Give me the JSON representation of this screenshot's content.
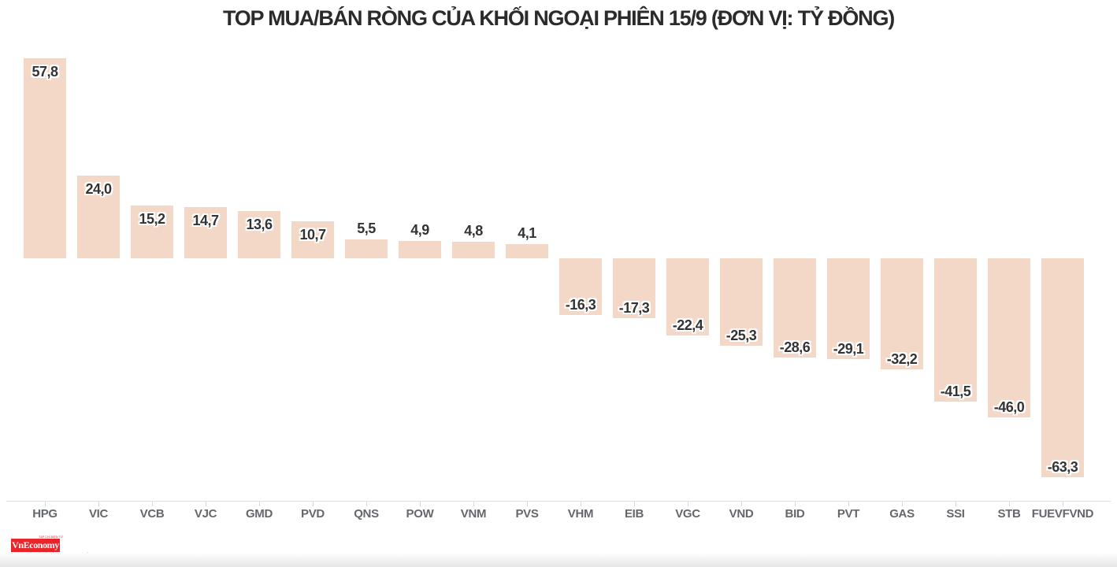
{
  "chart_data": {
    "type": "bar",
    "title": "TOP MUA/BÁN RÒNG CỦA KHỐI NGOẠI PHIÊN 15/9 (ĐƠN VỊ: TỶ ĐỒNG)",
    "categories": [
      "HPG",
      "VIC",
      "VCB",
      "VJC",
      "GMD",
      "PVD",
      "QNS",
      "POW",
      "VNM",
      "PVS",
      "VHM",
      "EIB",
      "VGC",
      "VND",
      "BID",
      "PVT",
      "GAS",
      "SSI",
      "STB",
      "FUEVFVND"
    ],
    "values": [
      57.8,
      24.0,
      15.2,
      14.7,
      13.6,
      10.7,
      5.5,
      4.9,
      4.8,
      4.1,
      -16.3,
      -17.3,
      -22.4,
      -25.3,
      -28.6,
      -29.1,
      -32.2,
      -41.5,
      -46.0,
      -63.3
    ],
    "value_labels": [
      "57,8",
      "24,0",
      "15,2",
      "14,7",
      "13,6",
      "10,7",
      "5,5",
      "4,9",
      "4,8",
      "4,1",
      "-16,3",
      "-17,3",
      "-22,4",
      "-25,3",
      "-28,6",
      "-29,1",
      "-32,2",
      "-41,5",
      "-46,0",
      "-63,3"
    ],
    "xlabel": "",
    "ylabel": "",
    "ylim": [
      -70,
      62
    ],
    "grid": false,
    "legend": false,
    "bar_color": "#f3d8c7",
    "value_label_color": "#333333",
    "category_label_color": "#64676c",
    "axis_color": "#e0e0e0",
    "title_color": "#2b2b2b"
  },
  "branding": {
    "logo_text": "VnEconomy",
    "logo_top_tagline": "TẠP CHÍ ĐIỆN TỬ",
    "logo_bottom_tagline": "CƠ QUAN NGÔN LUẬN CỦA HỘI KHOA HỌC KINH TẾ VIỆT NAM",
    "logo_color": "#e7252b"
  }
}
